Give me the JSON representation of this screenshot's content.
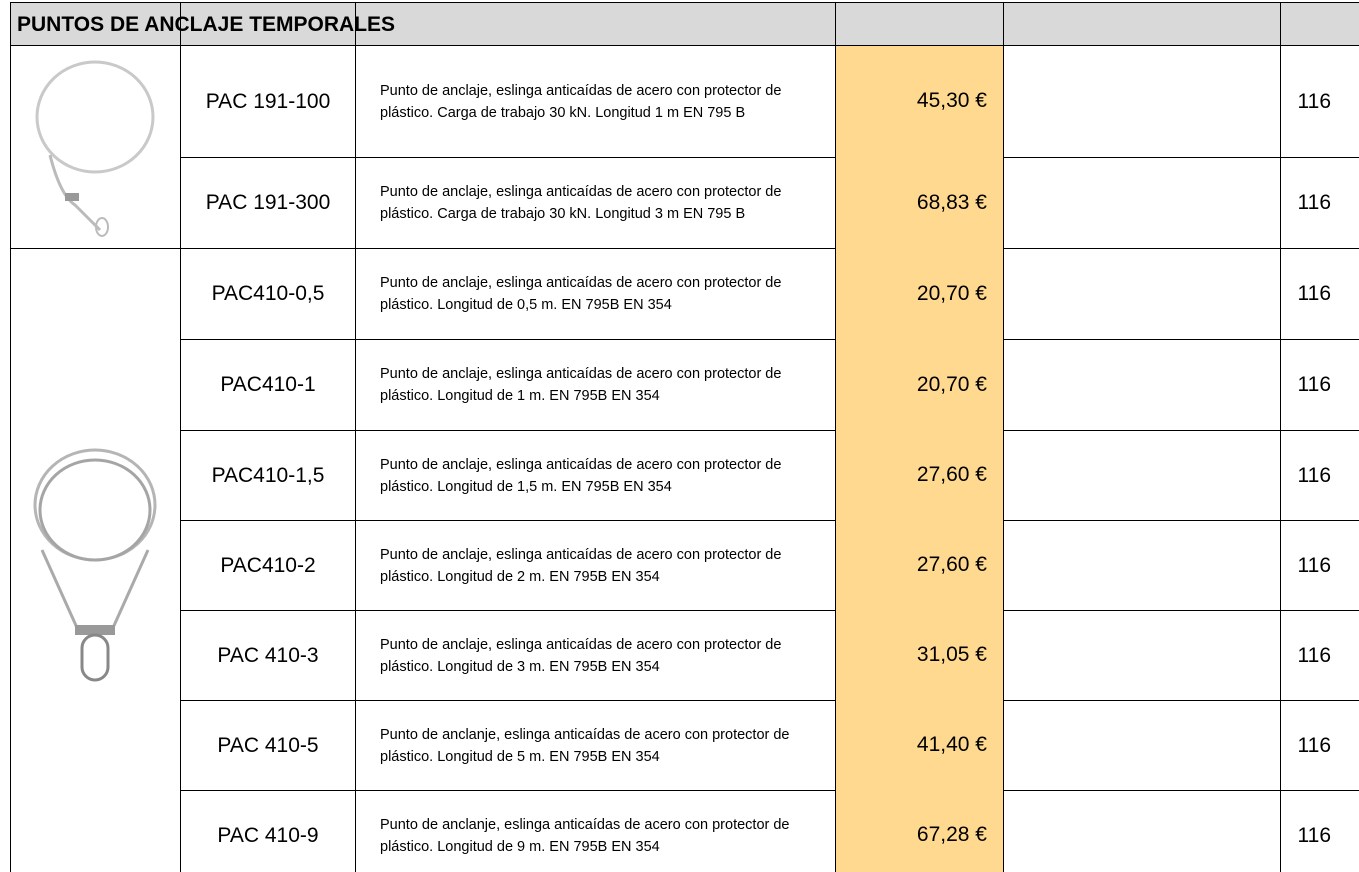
{
  "header": {
    "title": "PUNTOS DE ANCLAJE TEMPORALES"
  },
  "table": {
    "rows": [
      {
        "code": "PAC 191-100",
        "description": "Punto de anclaje, eslinga anticaídas de acero con protector de plástico. Carga de trabajo 30 kN. Longitud 1 m  EN 795 B",
        "price": "45,30 €",
        "page": "116"
      },
      {
        "code": "PAC 191-300",
        "description": "Punto de anclaje, eslinga anticaídas de acero con protector de plástico. Carga de trabajo 30 kN. Longitud 3 m  EN 795 B",
        "price": "68,83 €",
        "page": "116"
      },
      {
        "code": "PAC410-0,5",
        "description": "Punto de anclaje, eslinga anticaídas de acero con protector de plástico. Longitud de 0,5 m. EN 795B EN 354",
        "price": "20,70 €",
        "page": "116"
      },
      {
        "code": "PAC410-1",
        "description": "Punto de anclaje, eslinga anticaídas de acero con protector de plástico. Longitud de 1 m. EN 795B EN 354",
        "price": "20,70 €",
        "page": "116"
      },
      {
        "code": "PAC410-1,5",
        "description": "Punto de anclaje, eslinga anticaídas de acero con protector de plástico. Longitud de 1,5 m. EN 795B EN 354",
        "price": "27,60 €",
        "page": "116"
      },
      {
        "code": "PAC410-2",
        "description": "Punto de anclaje, eslinga anticaídas de acero con protector de plástico. Longitud de 2 m. EN 795B EN 354",
        "price": "27,60 €",
        "page": "116"
      },
      {
        "code": "PAC 410-3",
        "description": "Punto de anclaje, eslinga anticaídas de acero con protector de plástico. Longitud de 3 m. EN 795B EN 354",
        "price": "31,05 €",
        "page": "116"
      },
      {
        "code": "PAC 410-5",
        "description": "Punto de anclanje, eslinga anticaídas de acero con protector de plástico. Longitud de 5 m. EN 795B EN 354",
        "price": "41,40 €",
        "page": "116"
      },
      {
        "code": "PAC 410-9",
        "description": "Punto de anclanje, eslinga anticaídas de acero con protector de plástico. Longitud de 9 m. EN 795B EN 354",
        "price": "67,28 €",
        "page": "116"
      }
    ]
  }
}
